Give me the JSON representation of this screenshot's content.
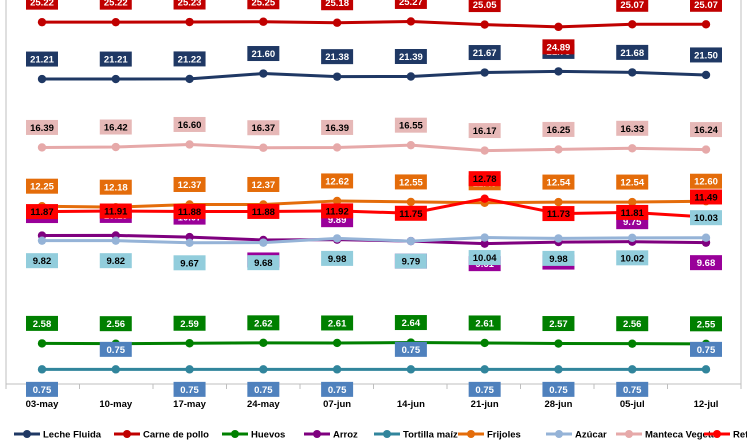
{
  "chart_data": {
    "type": "line",
    "title": "",
    "xlabel": "",
    "ylabel": "",
    "categories": [
      "03-may",
      "10-may",
      "17-may",
      "24-may",
      "07-jun",
      "14-jun",
      "21-jun",
      "28-jun",
      "05-jul",
      "12-jul"
    ],
    "ylim": [
      0,
      26.5
    ],
    "grid": false,
    "legend_position": "bottom",
    "series": [
      {
        "name": "Leche Fluida",
        "color": "#1f3864",
        "label_bg": "#1f3864",
        "label_color": "#ffffff",
        "label_pos": [
          "above",
          "above",
          "above",
          "above",
          "above",
          "above",
          "above",
          "above",
          "above",
          "above"
        ],
        "values": [
          21.21,
          21.21,
          21.22,
          21.6,
          21.38,
          21.39,
          21.67,
          21.75,
          21.68,
          21.5
        ]
      },
      {
        "name": "Carne de pollo",
        "color": "#c00000",
        "label_bg": "#c00000",
        "label_color": "#ffffff",
        "label_pos": [
          "above",
          "above",
          "above",
          "above",
          "above",
          "above",
          "above",
          "below",
          "above",
          "above"
        ],
        "values": [
          25.22,
          25.22,
          25.23,
          25.25,
          25.18,
          25.27,
          25.05,
          24.89,
          25.07,
          25.07
        ]
      },
      {
        "name": "Huevos",
        "color": "#008000",
        "label_bg": "#008000",
        "label_color": "#ffffff",
        "label_pos": [
          "above",
          "above",
          "above",
          "above",
          "above",
          "above",
          "above",
          "above",
          "above",
          "above"
        ],
        "values": [
          2.58,
          2.56,
          2.59,
          2.62,
          2.61,
          2.64,
          2.61,
          2.57,
          2.56,
          2.55
        ]
      },
      {
        "name": "Arroz",
        "color": "#7f007f",
        "label_bg": "#990099",
        "label_color": "#ffffff",
        "label_pos": [
          "above",
          "above",
          "above",
          "below",
          "above",
          "below",
          "below",
          "below",
          "above",
          "below"
        ],
        "values": [
          10.18,
          10.19,
          10.07,
          9.87,
          9.89,
          9.79,
          9.61,
          9.72,
          9.75,
          9.68
        ]
      },
      {
        "name": "Tortilla maíz",
        "color": "#31859c",
        "label_bg": "#4f81bd",
        "label_color": "#ffffff",
        "label_pos": [
          "below",
          "above",
          "below",
          "below",
          "below",
          "above",
          "below",
          "below",
          "below",
          "above"
        ],
        "values": [
          0.75,
          0.75,
          0.75,
          0.75,
          0.75,
          0.75,
          0.75,
          0.75,
          0.75,
          0.75
        ]
      },
      {
        "name": "Frijoles",
        "color": "#e46c0a",
        "label_bg": "#e46c0a",
        "label_color": "#ffffff",
        "label_pos": [
          "above",
          "above",
          "above",
          "above",
          "above",
          "above",
          "above",
          "above",
          "above",
          "above"
        ],
        "values": [
          12.25,
          12.18,
          12.37,
          12.37,
          12.62,
          12.55,
          12.49,
          12.54,
          12.54,
          12.6
        ]
      },
      {
        "name": "Azúcar",
        "color": "#95b3d7",
        "label_bg": "#92cddc",
        "label_color": "#000000",
        "label_pos": [
          "below",
          "below",
          "below",
          "below",
          "below",
          "below",
          "below",
          "below",
          "below",
          "above"
        ],
        "values": [
          9.82,
          9.82,
          9.67,
          9.68,
          9.98,
          9.79,
          10.04,
          9.98,
          10.02,
          10.03
        ]
      },
      {
        "name": "Manteca Vegetal",
        "color": "#e6a9a9",
        "label_bg": "#e6b8b7",
        "label_color": "#000000",
        "label_pos": [
          "above",
          "above",
          "above",
          "above",
          "above",
          "above",
          "above",
          "above",
          "above",
          "above"
        ],
        "values": [
          16.39,
          16.42,
          16.6,
          16.37,
          16.39,
          16.55,
          16.17,
          16.25,
          16.33,
          16.24
        ]
      },
      {
        "name": "Refrescos",
        "color": "#ff0000",
        "label_bg": "#ff0000",
        "label_color": "#000000",
        "label_pos": [
          "center",
          "center",
          "center",
          "center",
          "center",
          "center",
          "above",
          "center",
          "center",
          "above"
        ],
        "values": [
          11.87,
          11.91,
          11.88,
          11.88,
          11.92,
          11.75,
          12.78,
          11.73,
          11.81,
          11.49
        ]
      }
    ]
  }
}
